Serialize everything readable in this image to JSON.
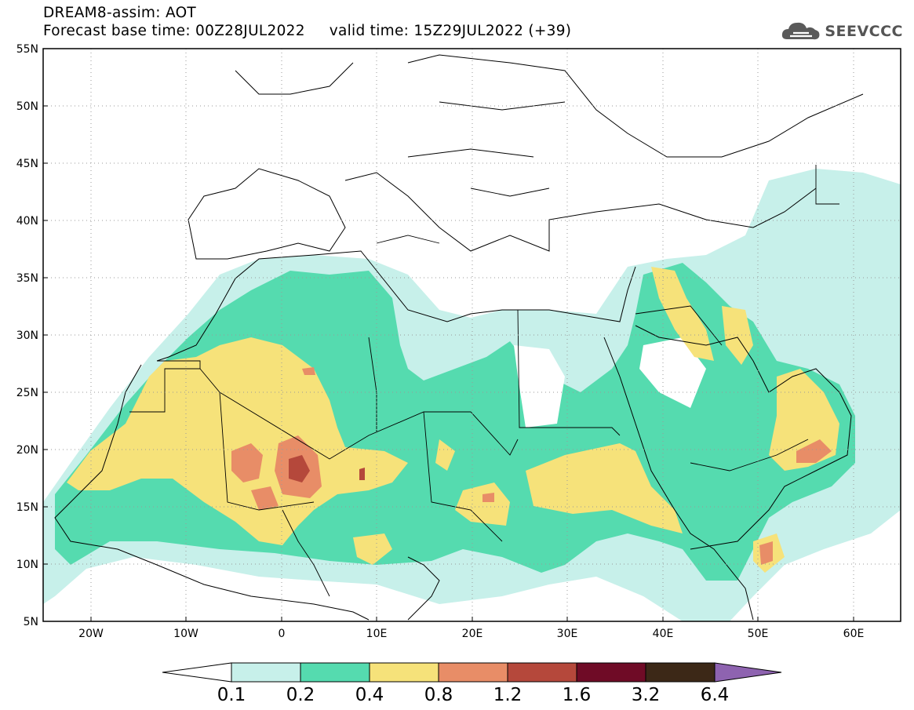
{
  "header": {
    "line1": "DREAM8-assim: AOT",
    "line2": "Forecast base time: 00Z28JUL2022     valid time: 15Z29JUL2022 (+39)"
  },
  "logo": {
    "text": "SEEVCCC",
    "icon": "cloud-icon",
    "color": "#5a5a5a"
  },
  "map": {
    "lon_range": [
      -25,
      65
    ],
    "lat_range": [
      5,
      55
    ],
    "lat_ticks": [
      "55N",
      "50N",
      "45N",
      "40N",
      "35N",
      "30N",
      "25N",
      "20N",
      "15N",
      "10N",
      "5N"
    ],
    "lon_ticks": [
      "20W",
      "10W",
      "0",
      "10E",
      "20E",
      "30E",
      "40E",
      "50E",
      "60E"
    ],
    "gridlines": "dotted"
  },
  "colorbar": {
    "labels": [
      "0.1",
      "0.2",
      "0.4",
      "0.8",
      "1.2",
      "1.6",
      "3.2",
      "6.4"
    ],
    "colors": [
      "#c7f0ea",
      "#55dbaf",
      "#f6e27a",
      "#e88d67",
      "#b5483b",
      "#6f0b26",
      "#3c2817",
      "#8e63b0"
    ]
  },
  "palette": {
    "c1": "#c7f0ea",
    "c2": "#55dbaf",
    "c3": "#f6e27a",
    "c4": "#e88d67",
    "c5": "#b5483b"
  }
}
